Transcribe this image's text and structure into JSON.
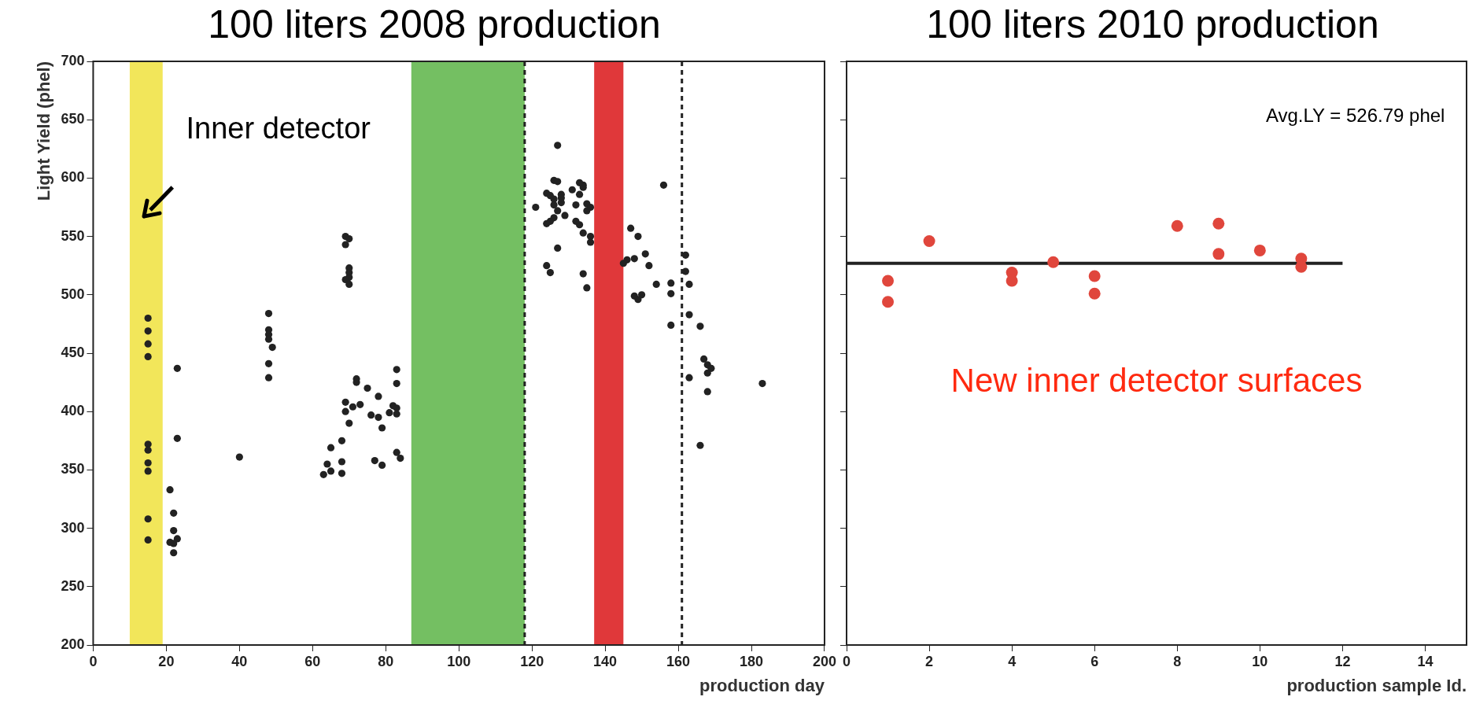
{
  "chart_data": [
    {
      "type": "scatter",
      "title": "100 liters 2008 production",
      "xlabel": "production day",
      "ylabel": "Light Yield (phel)",
      "x": [
        15,
        15,
        15,
        15,
        15,
        15,
        15,
        15,
        15,
        15,
        21,
        22,
        22,
        23,
        22,
        22,
        21,
        23,
        23,
        40,
        48,
        48,
        48,
        48,
        49,
        48,
        48,
        63,
        64,
        65,
        65,
        68,
        68,
        68,
        70,
        69,
        69,
        71,
        73,
        72,
        72,
        75,
        76,
        78,
        78,
        77,
        79,
        79,
        81,
        82,
        83,
        83,
        83,
        83,
        83,
        84,
        69,
        70,
        69,
        70,
        70,
        70,
        69,
        70,
        121,
        127,
        126,
        127,
        134,
        131,
        124,
        125,
        126,
        126,
        127,
        128,
        128,
        126,
        125,
        124,
        129,
        128,
        132,
        133,
        134,
        135,
        135,
        133,
        134,
        136,
        136,
        132,
        127,
        124,
        125,
        134,
        135,
        136,
        133,
        147,
        149,
        146,
        148,
        145,
        151,
        152,
        150,
        149,
        148,
        154,
        158,
        158,
        158,
        162,
        162,
        163,
        163,
        166,
        167,
        168,
        169,
        168,
        168,
        166,
        156,
        163,
        183
      ],
      "values": [
        480,
        469,
        458,
        447,
        372,
        367,
        356,
        349,
        308,
        290,
        288,
        287,
        279,
        291,
        298,
        313,
        333,
        377,
        437,
        361,
        484,
        470,
        466,
        462,
        455,
        441,
        429,
        346,
        355,
        349,
        369,
        347,
        357,
        375,
        390,
        408,
        400,
        404,
        406,
        425,
        428,
        420,
        397,
        395,
        413,
        358,
        354,
        386,
        399,
        405,
        403,
        436,
        424,
        398,
        365,
        360,
        550,
        548,
        543,
        523,
        519,
        515,
        513,
        509,
        575,
        628,
        598,
        597,
        594,
        590,
        587,
        585,
        582,
        577,
        572,
        579,
        586,
        566,
        563,
        561,
        568,
        583,
        577,
        586,
        592,
        572,
        578,
        560,
        553,
        545,
        550,
        563,
        540,
        525,
        519,
        518,
        506,
        575,
        596,
        557,
        550,
        530,
        531,
        527,
        535,
        525,
        500,
        496,
        499,
        509,
        510,
        501,
        474,
        534,
        520,
        509,
        483,
        473,
        445,
        440,
        437,
        433,
        417,
        371,
        594,
        429,
        424
      ],
      "color": "#222222",
      "marker": "circle",
      "xlim": [
        0,
        200
      ],
      "xticks": [
        0,
        20,
        40,
        60,
        80,
        100,
        120,
        140,
        160,
        180,
        200
      ],
      "ylim": [
        200,
        700
      ],
      "yticks": [
        200,
        250,
        300,
        350,
        400,
        450,
        500,
        550,
        600,
        650,
        700
      ],
      "bands": [
        {
          "axis": "x",
          "from": 10,
          "to": 19,
          "color": "#f2e65a"
        },
        {
          "axis": "x",
          "from": 87,
          "to": 118,
          "color": "#74bf62"
        },
        {
          "axis": "x",
          "from": 137,
          "to": 145,
          "color": "#e0383a"
        }
      ],
      "ref_lines": [
        {
          "axis": "x",
          "value": 118,
          "color": "#222222",
          "line_style": "dashed"
        },
        {
          "axis": "x",
          "value": 161,
          "color": "#222222",
          "line_style": "dashed"
        }
      ],
      "annotations": [
        "Inner detector"
      ]
    },
    {
      "type": "scatter",
      "title": "100 liters 2010 production",
      "xlabel": "production sample Id.",
      "series": [
        {
          "type": "scatter",
          "color": "#e0463c",
          "marker": "circle",
          "x": [
            1,
            1,
            2,
            4,
            4,
            5,
            6,
            6,
            8,
            9,
            9,
            10,
            11,
            11
          ],
          "values": [
            512,
            494,
            546,
            519,
            512,
            528,
            516,
            501,
            559,
            561,
            535,
            538,
            531,
            524
          ]
        },
        {
          "type": "line",
          "color": "#222222",
          "marker": "none",
          "x": [
            0,
            12
          ],
          "values": [
            527,
            527
          ]
        }
      ],
      "line_style": "solid",
      "xlim": [
        0,
        15
      ],
      "xticks": [
        0,
        2,
        4,
        6,
        8,
        10,
        12,
        14
      ],
      "ylim": [
        200,
        700
      ],
      "yticks": [
        200,
        250,
        300,
        350,
        400,
        450,
        500,
        550,
        600,
        650,
        700
      ],
      "tick_labels": "x",
      "annotations": [
        "Avg.LY = 526.79 phel",
        "New inner detector surfaces"
      ]
    }
  ]
}
